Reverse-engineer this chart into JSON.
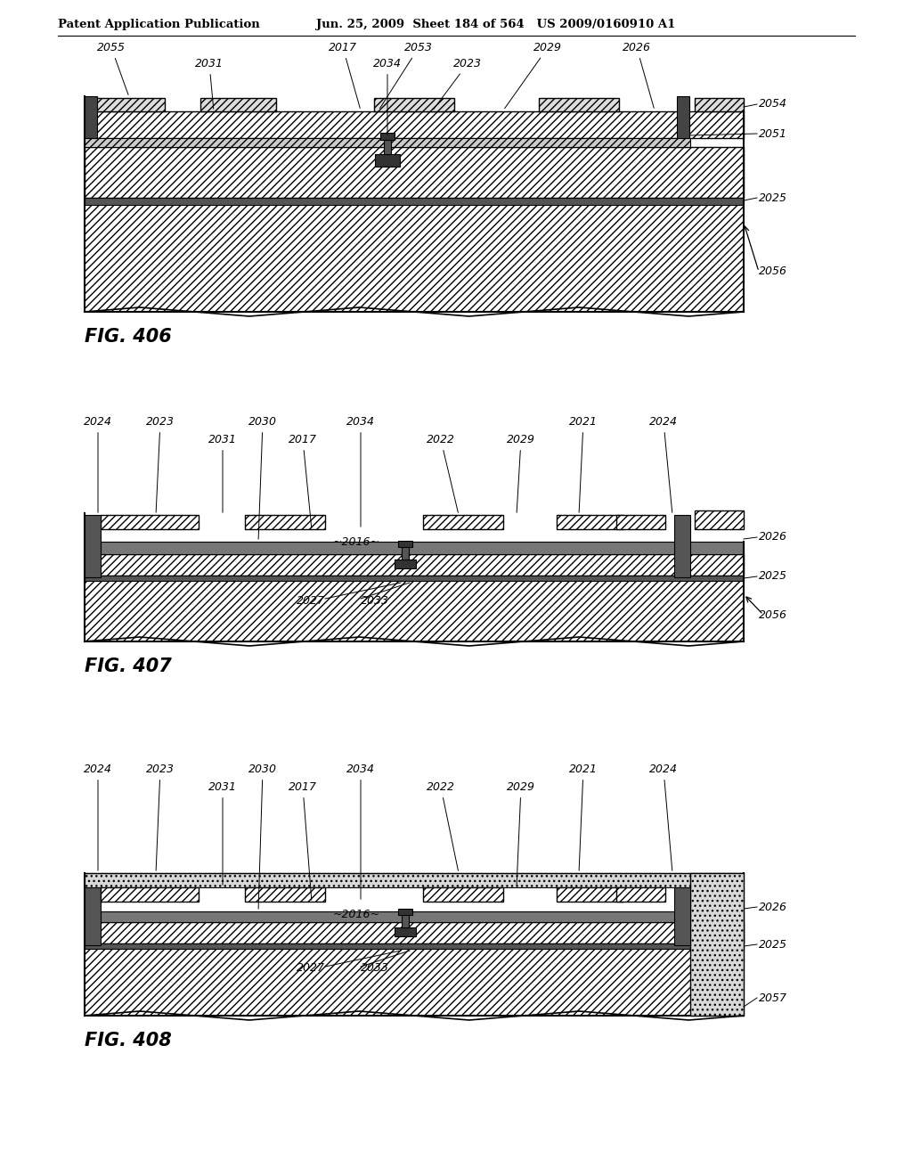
{
  "header_left": "Patent Application Publication",
  "header_right": "Jun. 25, 2009  Sheet 184 of 564   US 2009/0160910 A1",
  "fig406_label": "FIG. 406",
  "fig407_label": "FIG. 407",
  "fig408_label": "FIG. 408",
  "bg_color": "#ffffff"
}
